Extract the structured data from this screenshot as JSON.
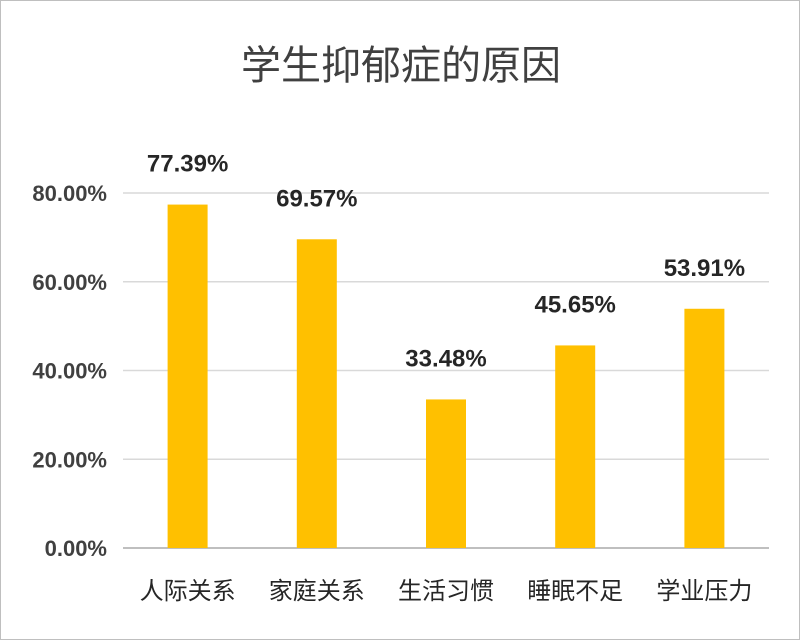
{
  "chart_data": {
    "type": "bar",
    "title": "学生抑郁症的原因",
    "categories": [
      "人际关系",
      "家庭关系",
      "生活习惯",
      "睡眠不足",
      "学业压力"
    ],
    "values": [
      77.39,
      69.57,
      33.48,
      45.65,
      53.91
    ],
    "data_labels": [
      "77.39%",
      "69.57%",
      "33.48%",
      "45.65%",
      "53.91%"
    ],
    "ylim": [
      0,
      80
    ],
    "yticks": [
      0,
      20,
      40,
      60,
      80
    ],
    "ytick_labels": [
      "0.00%",
      "20.00%",
      "40.00%",
      "60.00%",
      "80.00%"
    ],
    "grid": true,
    "legend": "none",
    "bar_color": "#FFC000",
    "xlabel": "",
    "ylabel": ""
  }
}
